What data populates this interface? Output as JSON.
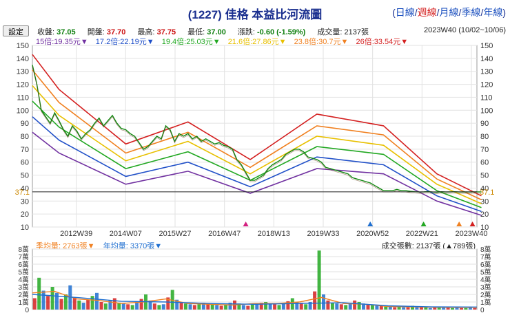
{
  "header": {
    "title": "(1227) 佳格 本益比河流圖",
    "periods": [
      {
        "label": "日線",
        "active": false
      },
      {
        "label": "週線",
        "active": true
      },
      {
        "label": "月線",
        "active": false
      },
      {
        "label": "季線",
        "active": false
      },
      {
        "label": "年線",
        "active": false
      }
    ],
    "settings_label": "設定"
  },
  "quote": {
    "close_label": "收盤:",
    "close": "37.05",
    "open_label": "開盤:",
    "open": "37.70",
    "high_label": "最高:",
    "high": "37.75",
    "low_label": "最低:",
    "low": "37.00",
    "change_label": "漲跌:",
    "change": "-0.60 (-1.59%)",
    "volume_label": "成交量:",
    "volume": "2137張",
    "week_range": "2023W40 (10/02~10/06)"
  },
  "pe_legend": [
    {
      "label": "15倍:19.35元▼",
      "color": "#7030a0"
    },
    {
      "label": "17.2倍:22.19元▼",
      "color": "#1f4fc8"
    },
    {
      "label": "19.4倍:25.03元▼",
      "color": "#22a822"
    },
    {
      "label": "21.6倍:27.86元▼",
      "color": "#e8c000"
    },
    {
      "label": "23.8倍:30.7元▼",
      "color": "#f08020"
    },
    {
      "label": "26倍:33.54元▼",
      "color": "#d42020"
    }
  ],
  "volume_legend": {
    "quarterly_label": "季均量: 2763張▼",
    "quarterly_color": "#f08020",
    "annual_label": "年均量: 3370張▼",
    "annual_color": "#1f6fd0",
    "deal_count": "成交張數: 2137張 (▲789張)"
  },
  "colors": {
    "price": "#118811",
    "price_line_dark": "#6a3d1a",
    "current_marker": "#cc8800",
    "vol_up": "#d42020",
    "vol_down": "#22a822",
    "vol_neutral": "#1f6fd0"
  },
  "chart_data": {
    "type": "line",
    "x_ticks": [
      "2012W39",
      "2014W07",
      "2015W27",
      "2016W47",
      "2018W13",
      "2019W33",
      "2020W52",
      "2022W21",
      "2023W40"
    ],
    "xlim": [
      0,
      10
    ],
    "y_ticks": [
      10,
      20,
      30,
      40,
      50,
      60,
      70,
      80,
      90,
      100,
      110,
      120,
      130,
      140,
      150
    ],
    "ylim": [
      10,
      150
    ],
    "current_price": 37.1,
    "current_price_label": "37.1",
    "pe_bands": {
      "x": [
        0,
        0.6,
        2.1,
        3.5,
        4.9,
        6.4,
        7.9,
        9.1,
        10.1
      ],
      "series": [
        {
          "name": "15倍",
          "color": "#7030a0",
          "values": [
            83,
            67,
            43,
            53,
            36,
            55,
            51,
            30,
            19
          ]
        },
        {
          "name": "17.2倍",
          "color": "#1f4fc8",
          "values": [
            95,
            77,
            49,
            60,
            41,
            64,
            58,
            34,
            22
          ]
        },
        {
          "name": "19.4倍",
          "color": "#22a822",
          "values": [
            107,
            87,
            55,
            68,
            46,
            72,
            66,
            38,
            25
          ]
        },
        {
          "name": "21.6倍",
          "color": "#e8c000",
          "values": [
            119,
            96,
            61,
            76,
            51,
            80,
            73,
            43,
            28
          ]
        },
        {
          "name": "23.8倍",
          "color": "#f08020",
          "values": [
            131,
            106,
            67,
            83,
            56,
            88,
            81,
            47,
            31
          ]
        },
        {
          "name": "26倍",
          "color": "#d42020",
          "values": [
            143,
            116,
            74,
            91,
            62,
            97,
            88,
            51,
            34
          ]
        }
      ]
    },
    "price": {
      "x": [
        0,
        0.1,
        0.2,
        0.3,
        0.4,
        0.5,
        0.6,
        0.7,
        0.8,
        0.9,
        1.0,
        1.1,
        1.2,
        1.3,
        1.4,
        1.5,
        1.6,
        1.7,
        1.8,
        1.9,
        2.0,
        2.1,
        2.2,
        2.3,
        2.4,
        2.5,
        2.6,
        2.7,
        2.8,
        2.9,
        3.0,
        3.1,
        3.2,
        3.3,
        3.4,
        3.5,
        3.6,
        3.7,
        3.8,
        3.9,
        4.0,
        4.1,
        4.2,
        4.3,
        4.4,
        4.5,
        4.6,
        4.7,
        4.8,
        4.9,
        5.0,
        5.1,
        5.2,
        5.3,
        5.4,
        5.5,
        5.6,
        5.7,
        5.8,
        5.9,
        6.0,
        6.1,
        6.2,
        6.3,
        6.4,
        6.5,
        6.6,
        6.7,
        6.8,
        6.9,
        7.0,
        7.1,
        7.2,
        7.3,
        7.4,
        7.5,
        7.6,
        7.7,
        7.8,
        7.9,
        8.0,
        8.1,
        8.2,
        8.3,
        8.4,
        8.5,
        8.6,
        8.7,
        8.8,
        8.9,
        9.0,
        9.1,
        9.2,
        9.3,
        9.4,
        9.5,
        9.6,
        9.7,
        9.8,
        9.9,
        10.0,
        10.1
      ],
      "values": [
        135,
        120,
        100,
        95,
        90,
        98,
        92,
        85,
        80,
        88,
        84,
        78,
        82,
        85,
        90,
        94,
        88,
        92,
        96,
        90,
        86,
        85,
        82,
        80,
        75,
        70,
        72,
        76,
        80,
        78,
        88,
        85,
        76,
        82,
        80,
        82,
        78,
        80,
        76,
        78,
        76,
        74,
        75,
        73,
        72,
        70,
        62,
        58,
        52,
        46,
        46,
        48,
        50,
        55,
        58,
        60,
        62,
        66,
        68,
        70,
        70,
        68,
        64,
        63,
        62,
        60,
        56,
        55,
        54,
        53,
        52,
        51,
        48,
        47,
        46,
        45,
        44,
        42,
        40,
        38,
        38,
        38,
        39,
        38,
        38,
        37.5,
        37.2,
        37.0,
        37.1,
        37.3,
        37.0,
        36.8,
        37.2,
        37.0,
        37.1,
        37.2,
        37.0,
        37.1,
        37.0,
        37.1,
        37.1,
        37.1
      ]
    },
    "markers": [
      {
        "x": 4.8,
        "color": "#d42080"
      },
      {
        "x": 7.6,
        "color": "#1f6fd0"
      },
      {
        "x": 8.8,
        "color": "#22a822"
      },
      {
        "x": 9.6,
        "color": "#f08020"
      },
      {
        "x": 9.9,
        "color": "#d42020"
      }
    ],
    "volume": {
      "y_ticks": [
        0,
        1,
        2,
        3,
        4,
        5,
        6,
        7,
        8
      ],
      "y_tick_labels": [
        "0",
        "1萬",
        "2萬",
        "3萬",
        "4萬",
        "5萬",
        "6萬",
        "7萬",
        "8萬"
      ],
      "ylim": [
        0,
        8
      ],
      "unit": "萬張",
      "x": [
        0.05,
        0.15,
        0.25,
        0.35,
        0.45,
        0.55,
        0.65,
        0.75,
        0.85,
        0.95,
        1.05,
        1.15,
        1.25,
        1.35,
        1.45,
        1.55,
        1.65,
        1.75,
        1.85,
        1.95,
        2.05,
        2.15,
        2.25,
        2.35,
        2.45,
        2.55,
        2.65,
        2.75,
        2.85,
        2.95,
        3.05,
        3.15,
        3.25,
        3.35,
        3.45,
        3.55,
        3.65,
        3.75,
        3.85,
        3.95,
        4.05,
        4.15,
        4.25,
        4.35,
        4.45,
        4.55,
        4.65,
        4.75,
        4.85,
        4.95,
        5.05,
        5.15,
        5.25,
        5.35,
        5.45,
        5.55,
        5.65,
        5.75,
        5.85,
        5.95,
        6.05,
        6.15,
        6.25,
        6.35,
        6.45,
        6.55,
        6.65,
        6.75,
        6.85,
        6.95,
        7.05,
        7.15,
        7.25,
        7.35,
        7.45,
        7.55,
        7.65,
        7.75,
        7.85,
        7.95,
        8.05,
        8.15,
        8.25,
        8.35,
        8.45,
        8.55,
        8.65,
        8.75,
        8.85,
        8.95,
        9.05,
        9.15,
        9.25,
        9.35,
        9.45,
        9.55,
        9.65,
        9.75,
        9.85,
        9.95
      ],
      "values": [
        1.5,
        4.2,
        2.5,
        1.8,
        3.0,
        2.2,
        1.4,
        2.0,
        3.2,
        1.6,
        1.2,
        0.9,
        1.3,
        1.8,
        2.2,
        1.0,
        0.8,
        1.2,
        1.5,
        0.9,
        0.8,
        0.7,
        0.6,
        1.0,
        1.4,
        2.0,
        1.2,
        0.8,
        0.6,
        0.7,
        1.6,
        2.6,
        1.3,
        0.9,
        0.8,
        0.7,
        0.6,
        0.7,
        0.9,
        0.8,
        0.7,
        0.6,
        0.5,
        0.6,
        0.9,
        1.2,
        0.8,
        0.6,
        0.5,
        0.7,
        0.8,
        0.9,
        1.0,
        0.8,
        0.7,
        0.6,
        0.8,
        1.1,
        1.5,
        1.0,
        0.9,
        0.7,
        1.0,
        2.4,
        7.8,
        2.0,
        1.2,
        0.9,
        0.8,
        0.7,
        0.6,
        0.8,
        1.2,
        1.0,
        0.8,
        0.7,
        0.6,
        0.5,
        0.5,
        0.4,
        0.4,
        0.3,
        0.4,
        0.3,
        0.3,
        0.5,
        0.4,
        0.3,
        0.3,
        0.2,
        0.3,
        0.3,
        0.4,
        0.3,
        0.2,
        0.3,
        0.2,
        0.2,
        0.3,
        0.2
      ]
    },
    "volume_quarterly_avg": {
      "x": [
        0,
        0.5,
        1,
        1.5,
        2,
        2.5,
        3,
        3.5,
        4,
        4.5,
        5,
        5.5,
        6,
        6.5,
        7,
        7.5,
        8,
        8.5,
        9,
        9.5,
        10
      ],
      "values": [
        2.2,
        2.4,
        1.4,
        1.2,
        0.8,
        1.0,
        1.4,
        0.8,
        0.7,
        0.6,
        0.8,
        0.8,
        1.0,
        1.6,
        0.8,
        0.7,
        0.4,
        0.35,
        0.3,
        0.28,
        0.28
      ]
    },
    "volume_annual_avg": {
      "x": [
        0,
        1,
        2,
        3,
        4,
        5,
        6,
        7,
        8,
        9,
        10
      ],
      "values": [
        2.0,
        1.6,
        1.1,
        1.0,
        0.8,
        0.7,
        0.8,
        0.9,
        0.5,
        0.35,
        0.34
      ]
    }
  }
}
